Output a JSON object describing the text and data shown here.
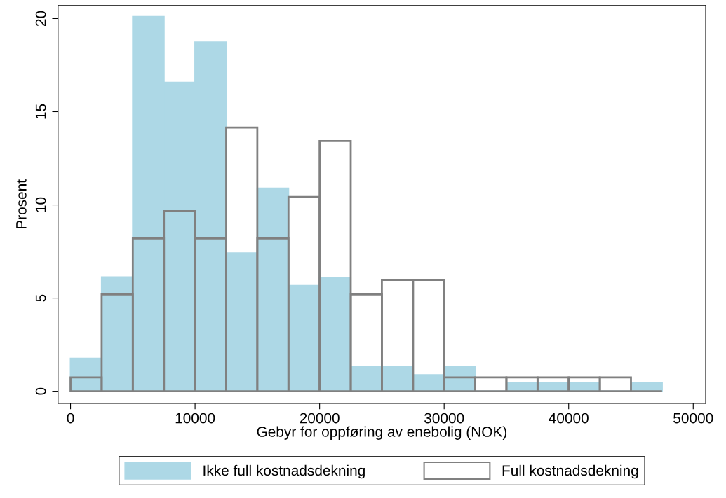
{
  "chart_data": {
    "type": "histogram",
    "xlabel": "Gebyr for oppføring av enebolig (NOK)",
    "ylabel": "Prosent",
    "bins": [
      0,
      2500,
      5000,
      7500,
      10000,
      12500,
      15000,
      17500,
      20000,
      22500,
      25000,
      27500,
      30000,
      32500,
      35000,
      37500,
      40000,
      42500,
      45000,
      47500
    ],
    "series": [
      {
        "name": "Ikke full kostnadsdekning",
        "color": "#add8e6",
        "values": [
          1.76,
          6.13,
          20.1,
          16.57,
          18.73,
          7.42,
          10.89,
          5.67,
          6.1,
          1.32,
          1.32,
          0.88,
          1.32,
          0,
          0.44,
          0.44,
          0.44,
          0,
          0.44
        ]
      },
      {
        "name": "Full kostnadsdekning",
        "color": "#808080",
        "values": [
          0.74,
          5.2,
          8.2,
          9.67,
          8.2,
          14.15,
          8.2,
          10.43,
          13.43,
          5.2,
          5.98,
          5.98,
          0.74,
          0.74,
          0.74,
          0.74,
          0.74,
          0.74,
          0
        ]
      }
    ],
    "xlim": [
      -1000,
      51000
    ],
    "ylim": [
      -0.65,
      20.7
    ],
    "xticks": [
      0,
      10000,
      20000,
      30000,
      40000,
      50000
    ],
    "yticks": [
      0,
      5,
      10,
      15,
      20
    ],
    "grid": false,
    "legend": "bottom"
  }
}
